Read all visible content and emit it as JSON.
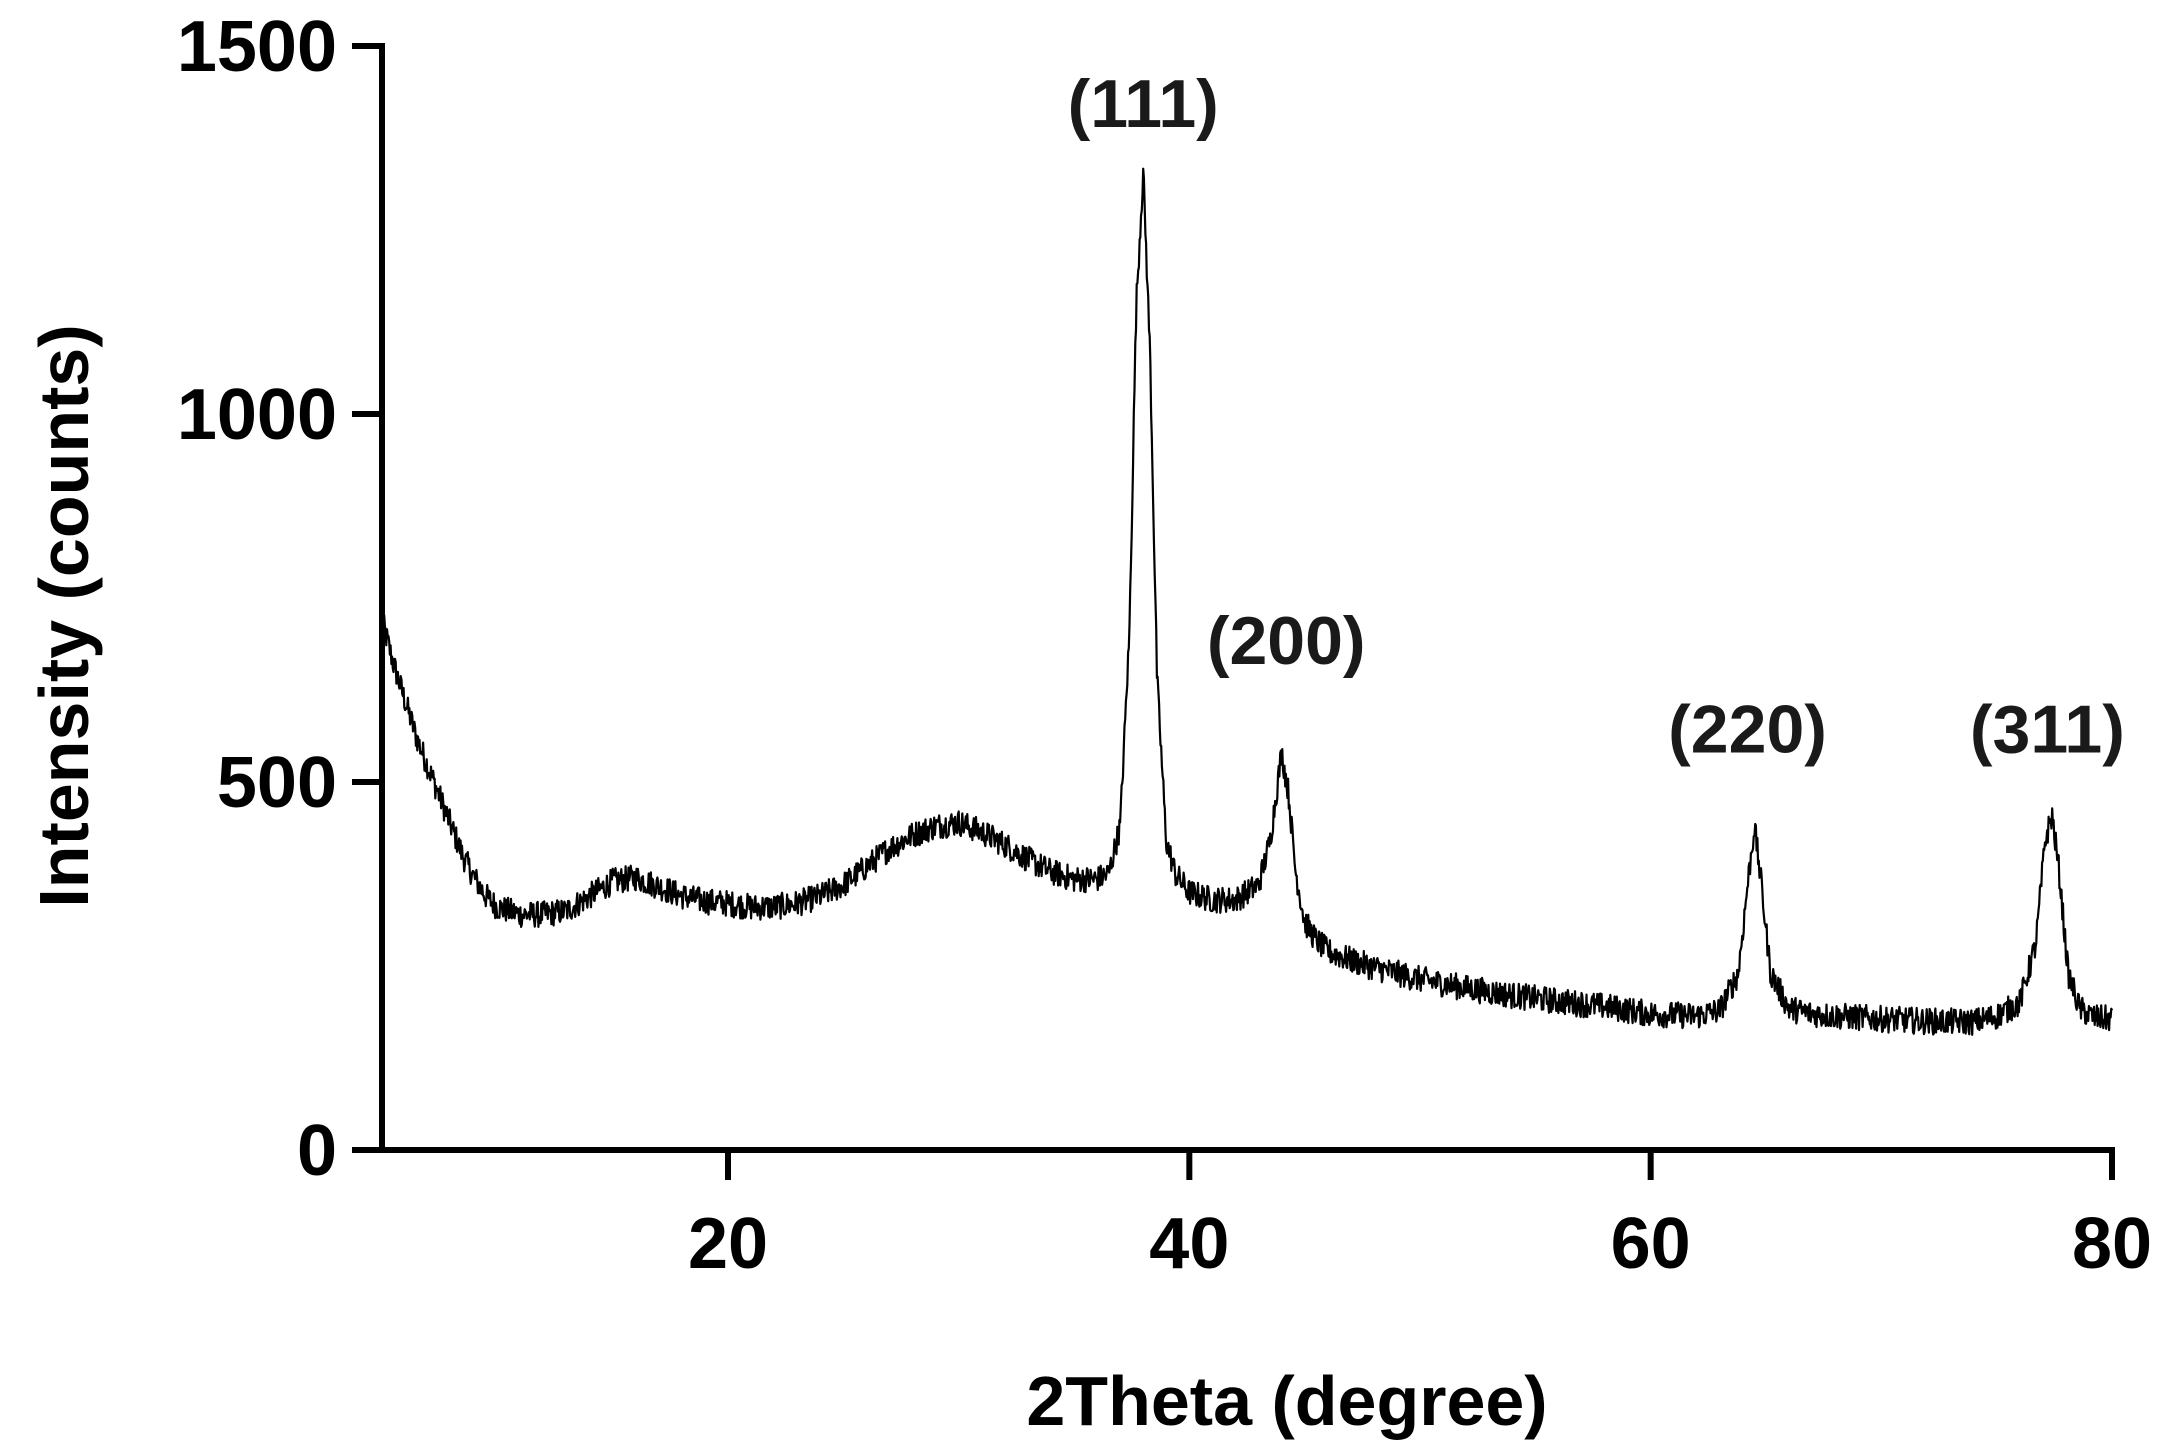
{
  "chart_data": {
    "type": "line",
    "title": "",
    "xlabel": "2Theta (degree)",
    "ylabel": "Intensity (counts)",
    "xlim": [
      5,
      80
    ],
    "ylim": [
      0,
      1500
    ],
    "x_ticks": [
      20,
      40,
      60,
      80
    ],
    "y_ticks": [
      0,
      500,
      1000,
      1500
    ],
    "grid": false,
    "legend": "none",
    "line_color": "#000000",
    "noise_amplitude": 18,
    "series": [
      {
        "x": [
          5,
          5.5,
          6,
          6.5,
          7,
          7.5,
          8,
          8.5,
          9,
          9.5,
          10,
          10.5,
          11,
          12,
          13,
          14,
          15,
          16,
          17,
          18,
          19,
          20,
          21,
          22,
          23,
          24,
          25,
          26,
          27,
          28,
          29,
          30,
          31,
          32,
          33,
          34,
          35,
          36,
          36.5,
          37,
          37.4,
          37.7,
          38,
          38.3,
          38.6,
          39,
          39.4,
          40,
          41,
          42,
          43,
          43.5,
          44,
          44.3,
          44.6,
          45,
          45.5,
          46,
          47,
          48,
          49,
          50,
          52,
          54,
          56,
          58,
          60,
          62,
          63,
          63.8,
          64.2,
          64.5,
          64.8,
          65.2,
          66,
          67,
          68,
          70,
          72,
          74,
          75,
          76,
          76.7,
          77.1,
          77.4,
          77.7,
          78.1,
          78.6,
          79.2,
          80
        ],
        "y": [
          720,
          660,
          610,
          560,
          520,
          480,
          440,
          400,
          370,
          345,
          330,
          325,
          320,
          320,
          325,
          345,
          365,
          370,
          358,
          345,
          338,
          335,
          330,
          330,
          335,
          345,
          360,
          385,
          410,
          428,
          440,
          445,
          432,
          415,
          395,
          378,
          368,
          368,
          375,
          440,
          700,
          1150,
          1330,
          1080,
          640,
          420,
          375,
          350,
          340,
          340,
          360,
          420,
          540,
          485,
          380,
          310,
          285,
          270,
          258,
          248,
          240,
          232,
          220,
          210,
          202,
          195,
          185,
          182,
          190,
          240,
          360,
          440,
          360,
          240,
          192,
          185,
          182,
          178,
          175,
          174,
          182,
          200,
          280,
          420,
          455,
          380,
          240,
          192,
          180,
          178
        ]
      }
    ],
    "annotations": [
      {
        "text": "(111)",
        "x": 38,
        "y": 1390
      },
      {
        "text": "(200)",
        "x": 44.2,
        "y": 660
      },
      {
        "text": "(220)",
        "x": 64.2,
        "y": 540
      },
      {
        "text": "(311)",
        "x": 77.2,
        "y": 540
      }
    ]
  }
}
